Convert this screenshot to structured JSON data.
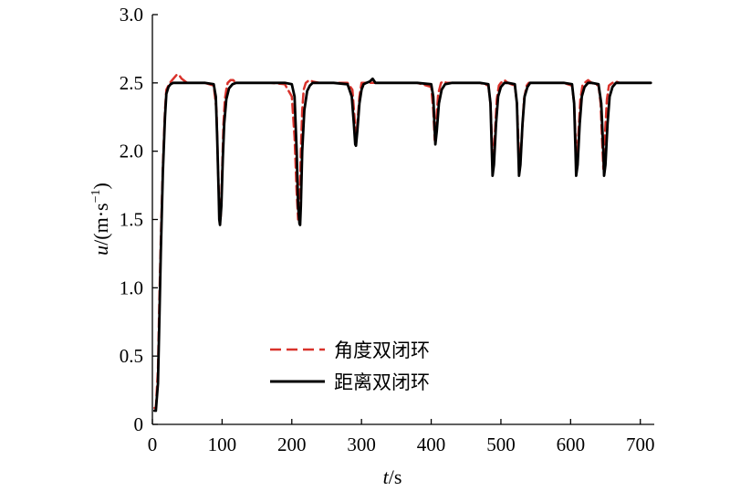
{
  "chart_data": {
    "type": "line",
    "xlabel_var": "t",
    "xlabel_unit": "/s",
    "ylabel_var": "u",
    "ylabel_unit_pre": "/(m·s",
    "ylabel_unit_sup": "−1",
    "ylabel_unit_post": ")",
    "xlim": [
      0,
      720
    ],
    "ylim": [
      0,
      3.0
    ],
    "xticks": [
      0,
      100,
      200,
      300,
      400,
      500,
      600,
      700
    ],
    "xtick_labels": [
      "0",
      "100",
      "200",
      "300",
      "400",
      "500",
      "600",
      "700"
    ],
    "yticks": [
      0,
      0.5,
      1.0,
      1.5,
      2.0,
      2.5,
      3.0
    ],
    "ytick_labels": [
      "0",
      "0.5",
      "1.0",
      "1.5",
      "2.0",
      "2.5",
      "3.0"
    ],
    "grid": false,
    "legend_position": "center",
    "series": [
      {
        "name": "角度双闭环",
        "color": "#d9322b",
        "style": "dashed",
        "x": [
          3,
          5,
          8,
          10,
          12,
          15,
          18,
          20,
          25,
          30,
          35,
          38,
          42,
          50,
          60,
          75,
          88,
          92,
          94,
          96,
          98,
          100,
          102,
          104,
          106,
          108,
          112,
          116,
          120,
          130,
          150,
          170,
          190,
          200,
          204,
          207,
          209,
          211,
          213,
          215,
          217,
          220,
          225,
          230,
          240,
          260,
          280,
          287,
          290,
          292,
          294,
          297,
          300,
          303,
          306,
          310,
          320,
          340,
          360,
          380,
          400,
          403,
          405,
          407,
          410,
          414,
          418,
          422,
          430,
          450,
          470,
          482,
          485,
          487,
          489,
          491,
          494,
          497,
          500,
          505,
          510,
          520,
          523,
          525,
          527,
          530,
          533,
          537,
          540,
          550,
          570,
          590,
          602,
          605,
          607,
          609,
          611,
          614,
          617,
          620,
          625,
          630,
          640,
          643,
          645,
          647,
          649,
          652,
          655,
          660,
          665,
          670,
          690,
          715
        ],
        "y": [
          0.12,
          0.12,
          0.4,
          0.9,
          1.35,
          1.9,
          2.3,
          2.45,
          2.5,
          2.53,
          2.56,
          2.56,
          2.53,
          2.5,
          2.5,
          2.5,
          2.48,
          2.3,
          1.9,
          1.6,
          1.52,
          1.85,
          2.2,
          2.38,
          2.45,
          2.5,
          2.52,
          2.52,
          2.5,
          2.5,
          2.5,
          2.5,
          2.49,
          2.4,
          2.1,
          1.7,
          1.5,
          1.6,
          2.0,
          2.3,
          2.45,
          2.5,
          2.52,
          2.51,
          2.5,
          2.5,
          2.5,
          2.45,
          2.25,
          2.07,
          2.2,
          2.4,
          2.5,
          2.5,
          2.5,
          2.5,
          2.5,
          2.5,
          2.5,
          2.5,
          2.47,
          2.3,
          2.08,
          2.2,
          2.42,
          2.5,
          2.51,
          2.5,
          2.5,
          2.5,
          2.5,
          2.48,
          2.35,
          2.1,
          1.87,
          2.1,
          2.38,
          2.48,
          2.5,
          2.52,
          2.5,
          2.48,
          2.35,
          2.1,
          1.87,
          2.1,
          2.38,
          2.48,
          2.5,
          2.5,
          2.5,
          2.5,
          2.48,
          2.35,
          2.1,
          1.87,
          2.1,
          2.38,
          2.48,
          2.5,
          2.52,
          2.5,
          2.48,
          2.35,
          2.1,
          1.87,
          2.1,
          2.38,
          2.48,
          2.5,
          2.51,
          2.5,
          2.5,
          2.5
        ]
      },
      {
        "name": "距离双闭环",
        "color": "#000000",
        "style": "solid",
        "x": [
          3,
          5,
          8,
          10,
          12,
          15,
          18,
          20,
          23,
          26,
          30,
          40,
          50,
          60,
          75,
          88,
          91,
          93,
          95,
          96,
          97,
          99,
          101,
          103,
          106,
          110,
          115,
          120,
          130,
          150,
          170,
          190,
          200,
          204,
          207,
          209,
          211,
          212,
          213,
          215,
          218,
          222,
          226,
          230,
          240,
          260,
          280,
          286,
          289,
          291,
          292,
          294,
          297,
          300,
          303,
          307,
          312,
          316,
          320,
          330,
          340,
          360,
          380,
          400,
          403,
          405,
          406,
          408,
          411,
          415,
          420,
          430,
          450,
          470,
          482,
          485,
          487,
          488,
          490,
          493,
          496,
          500,
          505,
          510,
          520,
          523,
          525,
          526,
          528,
          531,
          534,
          538,
          542,
          550,
          570,
          590,
          602,
          605,
          607,
          608,
          610,
          613,
          616,
          620,
          625,
          630,
          640,
          644,
          647,
          648,
          650,
          653,
          656,
          660,
          665,
          670,
          690,
          715
        ],
        "y": [
          0.1,
          0.1,
          0.3,
          0.75,
          1.25,
          1.85,
          2.25,
          2.42,
          2.47,
          2.49,
          2.5,
          2.5,
          2.5,
          2.5,
          2.5,
          2.49,
          2.4,
          2.1,
          1.7,
          1.5,
          1.46,
          1.6,
          1.95,
          2.2,
          2.38,
          2.46,
          2.49,
          2.5,
          2.5,
          2.5,
          2.5,
          2.5,
          2.49,
          2.4,
          2.0,
          1.6,
          1.47,
          1.46,
          1.6,
          2.0,
          2.3,
          2.44,
          2.48,
          2.5,
          2.5,
          2.5,
          2.49,
          2.4,
          2.2,
          2.05,
          2.04,
          2.15,
          2.35,
          2.45,
          2.49,
          2.5,
          2.51,
          2.53,
          2.5,
          2.5,
          2.5,
          2.5,
          2.5,
          2.49,
          2.4,
          2.15,
          2.05,
          2.15,
          2.35,
          2.45,
          2.49,
          2.5,
          2.5,
          2.5,
          2.49,
          2.35,
          2.0,
          1.82,
          1.9,
          2.2,
          2.4,
          2.47,
          2.5,
          2.5,
          2.49,
          2.35,
          2.0,
          1.82,
          1.9,
          2.2,
          2.4,
          2.47,
          2.5,
          2.5,
          2.5,
          2.5,
          2.49,
          2.35,
          2.0,
          1.82,
          1.9,
          2.2,
          2.4,
          2.47,
          2.5,
          2.5,
          2.49,
          2.35,
          2.0,
          1.82,
          1.9,
          2.2,
          2.4,
          2.47,
          2.5,
          2.5,
          2.5,
          2.5
        ]
      }
    ]
  }
}
